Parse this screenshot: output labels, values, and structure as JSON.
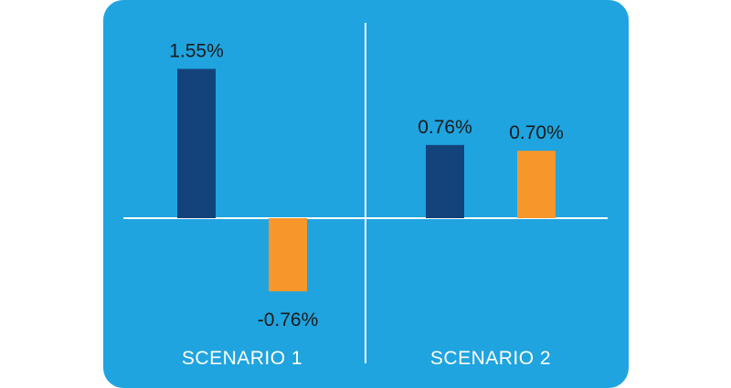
{
  "chart_data": {
    "type": "bar",
    "categories": [
      "SCENARIO 1",
      "SCENARIO 2"
    ],
    "series": [
      {
        "values": [
          1.55,
          0.76
        ],
        "value_labels": [
          "1.55%",
          "0.76%"
        ],
        "color": "#14427a"
      },
      {
        "values": [
          -0.76,
          0.7
        ],
        "value_labels": [
          "-0.76%",
          "0.70%"
        ],
        "color": "#f7962b"
      }
    ],
    "ylim": [
      -1.0,
      1.95
    ],
    "title": "",
    "xlabel": "",
    "ylabel": "",
    "grid": false,
    "colors": {
      "panel": "#1fa4e0",
      "axis": "#ffffff",
      "page_background": "#ffffff"
    }
  }
}
